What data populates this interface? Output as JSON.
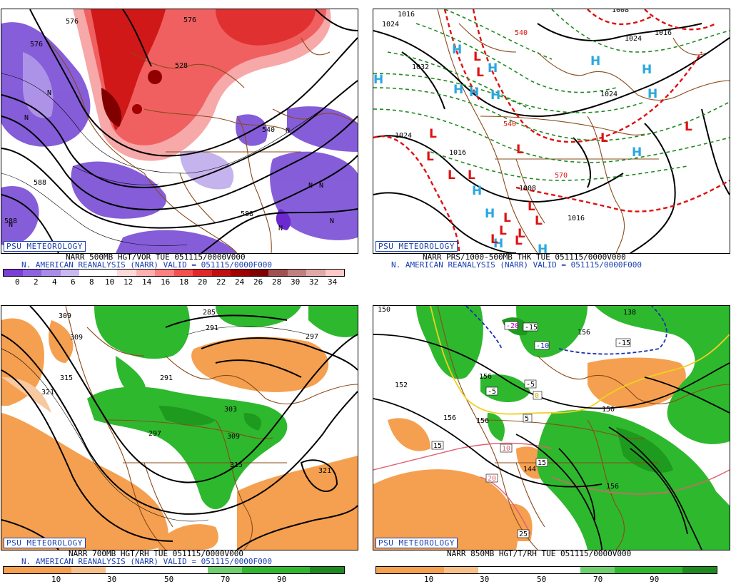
{
  "branding": "PSU METEOROLOGY",
  "panels": [
    {
      "id": "vor500",
      "caption_line1": "NARR 500MB HGT/VOR TUE 051115/0000V000",
      "caption_line2": "N. AMERICAN REANALYSIS (NARR) VALID = 051115/0000F000",
      "colorbar": {
        "ticks": [
          "0",
          "2",
          "4",
          "6",
          "8",
          "10",
          "12",
          "14",
          "16",
          "18",
          "20",
          "22",
          "24",
          "26",
          "28",
          "30",
          "32",
          "34"
        ],
        "colors": [
          "#7b3fd6",
          "#8f63e0",
          "#a98be8",
          "#c8b8f0",
          "#ffffff",
          "#ffffff",
          "#ffd8d8",
          "#ffb0b0",
          "#ff8080",
          "#f45050",
          "#e02828",
          "#c01010",
          "#a00000",
          "#800000",
          "#a05050",
          "#c08080",
          "#e0a8a8",
          "#ffc8c8"
        ]
      },
      "contour_labels": [
        "576",
        "576",
        "588",
        "588",
        "588",
        "576",
        "528",
        "540"
      ],
      "symbols": [
        "N",
        "N",
        "N",
        "N",
        "N",
        "N",
        "N",
        "N"
      ]
    },
    {
      "id": "thk",
      "caption_line1": "NARR PRS/1000-500MB THK TUE 051115/0000V000",
      "caption_line2": "N. AMERICAN REANALYSIS (NARR) VALID = 051115/0000F000",
      "pressure_labels": [
        "1016",
        "1024",
        "1032",
        "1024",
        "1016",
        "1008",
        "1016",
        "1024",
        "1008",
        "1016",
        "1024"
      ],
      "thickness_labels": [
        "540",
        "540",
        "570"
      ],
      "highs": [
        "H",
        "H",
        "H",
        "H",
        "H",
        "H",
        "H",
        "H",
        "H",
        "H",
        "H",
        "H",
        "H",
        "H"
      ],
      "lows": [
        "L",
        "L",
        "L",
        "L",
        "L",
        "L",
        "L",
        "L",
        "L",
        "L",
        "L",
        "L",
        "L",
        "L",
        "L",
        "L"
      ]
    },
    {
      "id": "rh700",
      "caption_line1": "NARR 700MB HGT/RH TUE 051115/0000V000",
      "caption_line2": "N. AMERICAN REANALYSIS (NARR) VALID = 051115/0000F000",
      "colorbar": {
        "ticks": [
          "10",
          "30",
          "50",
          "70",
          "90"
        ],
        "colors": [
          "#f5a050",
          "#ffffff",
          "#ffffff",
          "#2eb82e",
          "#1e9a1e"
        ]
      },
      "contour_labels": [
        "309",
        "309",
        "315",
        "321",
        "285",
        "291",
        "291",
        "297",
        "303",
        "309",
        "315",
        "321",
        "297"
      ]
    },
    {
      "id": "t850",
      "caption_line1": "NARR 850MB HGT/T/RH TUE 051115/0000V000",
      "colorbar": {
        "ticks": [
          "10",
          "30",
          "50",
          "70",
          "90"
        ],
        "colors": [
          "#f5a050",
          "#ffffff",
          "#ffffff",
          "#2eb82e",
          "#1e9a1e"
        ]
      },
      "height_labels": [
        "150",
        "152",
        "156",
        "156",
        "156",
        "150",
        "156",
        "144",
        "138",
        "156"
      ],
      "temp_labels": [
        "-20",
        "-15",
        "-10",
        "-15",
        "-5",
        "-5",
        "5",
        "0",
        "15",
        "15",
        "10",
        "20",
        "25"
      ]
    }
  ]
}
